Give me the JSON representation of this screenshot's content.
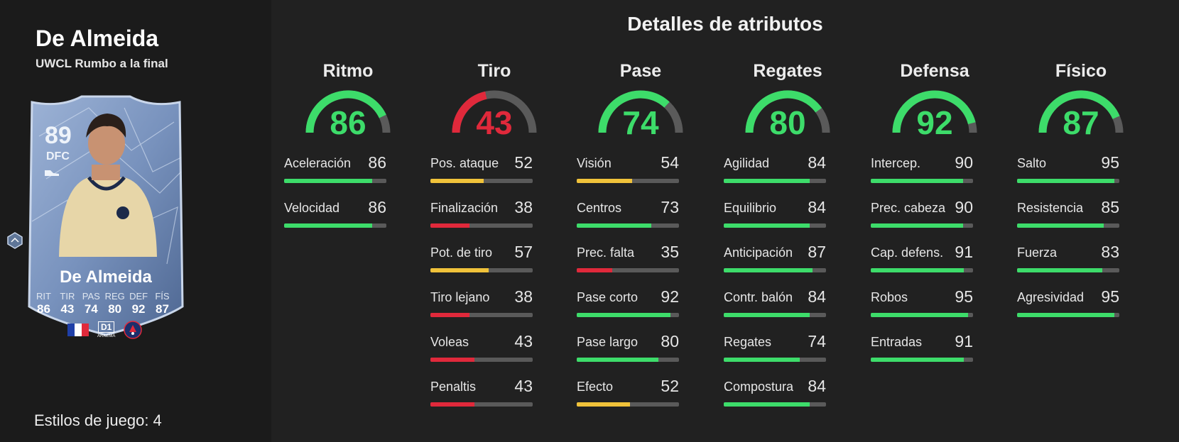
{
  "player": {
    "name": "De Almeida",
    "subtitle": "UWCL Rumbo a la final",
    "playstyles_label": "Estilos de juego: 4"
  },
  "card": {
    "rating": "89",
    "position": "DFC",
    "name": "De Almeida",
    "stat_labels": [
      "RIT",
      "TIR",
      "PAS",
      "REG",
      "DEF",
      "FÍS"
    ],
    "stat_values": [
      "86",
      "43",
      "74",
      "80",
      "92",
      "87"
    ],
    "league_badge": "D1",
    "league_sub": "ARKEMA"
  },
  "section_title": "Detalles de atributos",
  "colors": {
    "high": "#3ddc6a",
    "mid": "#f0c23a",
    "low": "#e0293b",
    "track": "#5a5a5a"
  },
  "categories": [
    {
      "name": "Ritmo",
      "value": 86,
      "color": "high",
      "attributes": [
        {
          "label": "Aceleración",
          "value": 86,
          "color": "high"
        },
        {
          "label": "Velocidad",
          "value": 86,
          "color": "high"
        }
      ]
    },
    {
      "name": "Tiro",
      "value": 43,
      "color": "low",
      "attributes": [
        {
          "label": "Pos. ataque",
          "value": 52,
          "color": "mid"
        },
        {
          "label": "Finalización",
          "value": 38,
          "color": "low"
        },
        {
          "label": "Pot. de tiro",
          "value": 57,
          "color": "mid"
        },
        {
          "label": "Tiro lejano",
          "value": 38,
          "color": "low"
        },
        {
          "label": "Voleas",
          "value": 43,
          "color": "low"
        },
        {
          "label": "Penaltis",
          "value": 43,
          "color": "low"
        }
      ]
    },
    {
      "name": "Pase",
      "value": 74,
      "color": "high",
      "attributes": [
        {
          "label": "Visión",
          "value": 54,
          "color": "mid"
        },
        {
          "label": "Centros",
          "value": 73,
          "color": "high"
        },
        {
          "label": "Prec. falta",
          "value": 35,
          "color": "low"
        },
        {
          "label": "Pase corto",
          "value": 92,
          "color": "high"
        },
        {
          "label": "Pase largo",
          "value": 80,
          "color": "high"
        },
        {
          "label": "Efecto",
          "value": 52,
          "color": "mid"
        }
      ]
    },
    {
      "name": "Regates",
      "value": 80,
      "color": "high",
      "attributes": [
        {
          "label": "Agilidad",
          "value": 84,
          "color": "high"
        },
        {
          "label": "Equilibrio",
          "value": 84,
          "color": "high"
        },
        {
          "label": "Anticipación",
          "value": 87,
          "color": "high"
        },
        {
          "label": "Contr. balón",
          "value": 84,
          "color": "high"
        },
        {
          "label": "Regates",
          "value": 74,
          "color": "high"
        },
        {
          "label": "Compostura",
          "value": 84,
          "color": "high"
        }
      ]
    },
    {
      "name": "Defensa",
      "value": 92,
      "color": "high",
      "attributes": [
        {
          "label": "Intercep.",
          "value": 90,
          "color": "high"
        },
        {
          "label": "Prec. cabeza",
          "value": 90,
          "color": "high"
        },
        {
          "label": "Cap. defens.",
          "value": 91,
          "color": "high"
        },
        {
          "label": "Robos",
          "value": 95,
          "color": "high"
        },
        {
          "label": "Entradas",
          "value": 91,
          "color": "high"
        }
      ]
    },
    {
      "name": "Físico",
      "value": 87,
      "color": "high",
      "attributes": [
        {
          "label": "Salto",
          "value": 95,
          "color": "high"
        },
        {
          "label": "Resistencia",
          "value": 85,
          "color": "high"
        },
        {
          "label": "Fuerza",
          "value": 83,
          "color": "high"
        },
        {
          "label": "Agresividad",
          "value": 95,
          "color": "high"
        }
      ]
    }
  ]
}
